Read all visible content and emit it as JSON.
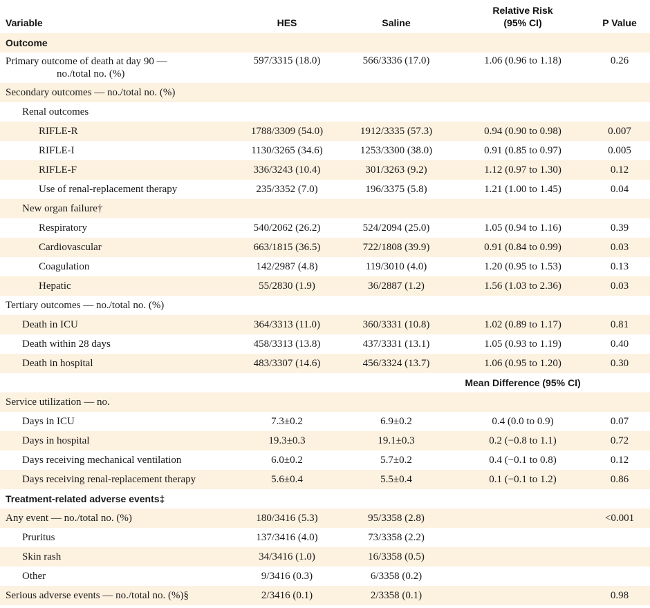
{
  "header": {
    "variable": "Variable",
    "hes": "HES",
    "saline": "Saline",
    "relative_risk_line1": "Relative Risk",
    "relative_risk_line2": "(95% CI)",
    "p_value": "P Value"
  },
  "rows": [
    {
      "id": "outcome-section",
      "variable": "Outcome"
    },
    {
      "id": "primary-death-90",
      "variable_line1": "Primary outcome of death at day 90 —",
      "variable_line2": "no./total no. (%)",
      "hes": "597/3315 (18.0)",
      "saline": "566/3336 (17.0)",
      "effect": "1.06 (0.96 to 1.18)",
      "p": "0.26"
    },
    {
      "id": "secondary-outcomes",
      "variable": "Secondary outcomes — no./total no. (%)"
    },
    {
      "id": "renal-outcomes",
      "variable": "Renal outcomes"
    },
    {
      "id": "rifle-r",
      "variable": "RIFLE-R",
      "hes": "1788/3309 (54.0)",
      "saline": "1912/3335 (57.3)",
      "effect": "0.94 (0.90 to 0.98)",
      "p": "0.007"
    },
    {
      "id": "rifle-i",
      "variable": "RIFLE-I",
      "hes": "1130/3265 (34.6)",
      "saline": "1253/3300 (38.0)",
      "effect": "0.91 (0.85 to 0.97)",
      "p": "0.005"
    },
    {
      "id": "rifle-f",
      "variable": "RIFLE-F",
      "hes": "336/3243 (10.4)",
      "saline": "301/3263 (9.2)",
      "effect": "1.12 (0.97 to 1.30)",
      "p": "0.12"
    },
    {
      "id": "rrt-use",
      "variable": "Use of renal-replacement therapy",
      "hes": "235/3352 (7.0)",
      "saline": "196/3375 (5.8)",
      "effect": "1.21 (1.00 to 1.45)",
      "p": "0.04"
    },
    {
      "id": "new-organ-failure",
      "variable": "New organ failure†"
    },
    {
      "id": "respiratory",
      "variable": "Respiratory",
      "hes": "540/2062 (26.2)",
      "saline": "524/2094 (25.0)",
      "effect": "1.05 (0.94 to 1.16)",
      "p": "0.39"
    },
    {
      "id": "cardiovascular",
      "variable": "Cardiovascular",
      "hes": "663/1815 (36.5)",
      "saline": "722/1808 (39.9)",
      "effect": "0.91 (0.84 to 0.99)",
      "p": "0.03"
    },
    {
      "id": "coagulation",
      "variable": "Coagulation",
      "hes": "142/2987 (4.8)",
      "saline": "119/3010 (4.0)",
      "effect": "1.20 (0.95 to 1.53)",
      "p": "0.13"
    },
    {
      "id": "hepatic",
      "variable": "Hepatic",
      "hes": "55/2830 (1.9)",
      "saline": "36/2887 (1.2)",
      "effect": "1.56 (1.03 to 2.36)",
      "p": "0.03"
    },
    {
      "id": "tertiary-outcomes",
      "variable": "Tertiary outcomes — no./total no. (%)"
    },
    {
      "id": "death-icu",
      "variable": "Death in ICU",
      "hes": "364/3313 (11.0)",
      "saline": "360/3331 (10.8)",
      "effect": "1.02 (0.89 to 1.17)",
      "p": "0.81"
    },
    {
      "id": "death-28",
      "variable": "Death within 28 days",
      "hes": "458/3313 (13.8)",
      "saline": "437/3331 (13.1)",
      "effect": "1.05 (0.93 to 1.19)",
      "p": "0.40"
    },
    {
      "id": "death-hospital",
      "variable": "Death in hospital",
      "hes": "483/3307 (14.6)",
      "saline": "456/3324 (13.7)",
      "effect": "1.06 (0.95 to 1.20)",
      "p": "0.30"
    },
    {
      "id": "mean-diff-header",
      "effect": "Mean Difference (95% CI)"
    },
    {
      "id": "service-utilization",
      "variable": "Service utilization — no."
    },
    {
      "id": "days-icu",
      "variable": "Days in ICU",
      "hes": "7.3±0.2",
      "saline": "6.9±0.2",
      "effect": "0.4 (0.0 to 0.9)",
      "p": "0.07"
    },
    {
      "id": "days-hospital",
      "variable": "Days in hospital",
      "hes": "19.3±0.3",
      "saline": "19.1±0.3",
      "effect": "0.2 (−0.8 to 1.1)",
      "p": "0.72"
    },
    {
      "id": "days-ventilation",
      "variable": "Days receiving mechanical ventilation",
      "hes": "6.0±0.2",
      "saline": "5.7±0.2",
      "effect": "0.4 (−0.1 to 0.8)",
      "p": "0.12"
    },
    {
      "id": "days-rrt",
      "variable": "Days receiving renal-replacement therapy",
      "hes": "5.6±0.4",
      "saline": "5.5±0.4",
      "effect": "0.1 (−0.1 to 1.2)",
      "p": "0.86"
    },
    {
      "id": "adverse-events",
      "variable": "Treatment-related adverse events‡"
    },
    {
      "id": "any-event",
      "variable": "Any event — no./total no. (%)",
      "hes": "180/3416 (5.3)",
      "saline": "95/3358 (2.8)",
      "p": "<0.001"
    },
    {
      "id": "pruritus",
      "variable": "Pruritus",
      "hes": "137/3416 (4.0)",
      "saline": "73/3358 (2.2)"
    },
    {
      "id": "skin-rash",
      "variable": "Skin rash",
      "hes": "34/3416 (1.0)",
      "saline": "16/3358 (0.5)"
    },
    {
      "id": "other",
      "variable": "Other",
      "hes": "9/3416 (0.3)",
      "saline": "6/3358 (0.2)"
    },
    {
      "id": "serious-adverse",
      "variable": "Serious adverse events — no./total no. (%)§",
      "hes": "2/3416 (0.1)",
      "saline": "2/3358 (0.1)",
      "p": "0.98"
    }
  ],
  "colors": {
    "row_shade": "#fdf1e0",
    "row_white": "#ffffff",
    "text": "#1a1a1a"
  }
}
